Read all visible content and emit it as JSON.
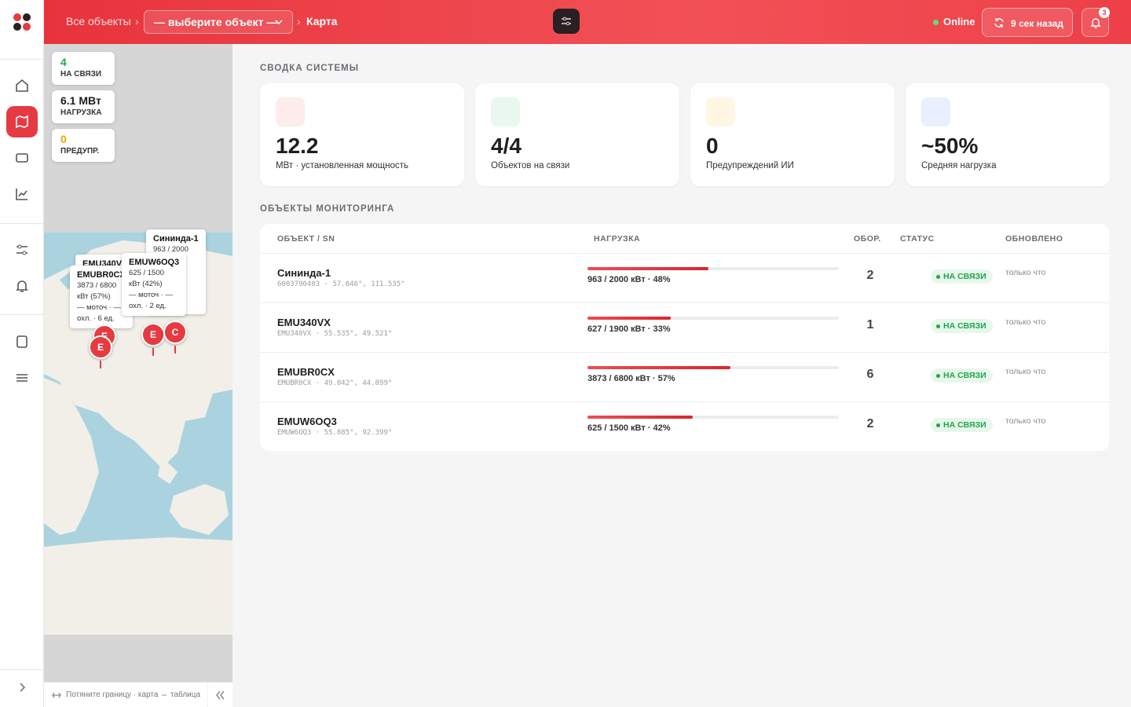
{
  "header": {
    "breadcrumb_root": "Все объекты",
    "object_select": "— выберите объект —",
    "current": "Карта",
    "status": "Online",
    "refresh": "9 сек назад",
    "notifications": 3
  },
  "map": {
    "stats": [
      {
        "value": "4",
        "label": "НА СВЯЗИ"
      },
      {
        "value": "6.1 МВт",
        "label": "НАГРУЗКА"
      },
      {
        "value": "0",
        "label": "ПРЕДУПР."
      }
    ],
    "popups": [
      {
        "title": "Сининда-1",
        "lines": [
          "963 / 2000"
        ]
      },
      {
        "title": "EMU340V",
        "lines": []
      },
      {
        "title": "EMUBR0CX",
        "lines": [
          "3873 / 6800",
          "кВт (57%)",
          "— моточ · —",
          "охл. · 6 ед."
        ]
      },
      {
        "title": "EMUW6OQ3",
        "lines": [
          "625 / 1500",
          "кВт (42%)",
          "— моточ · —",
          "охл. · 2 ед."
        ]
      }
    ],
    "markers": [
      "E",
      "E",
      "E",
      "C"
    ],
    "footer_hint": "Потяните границу · карта ⇔ таблица"
  },
  "summary": {
    "title": "СВОДКА СИСТЕМЫ",
    "cards": [
      {
        "value": "12.2",
        "label": "МВт · установленная мощность"
      },
      {
        "value": "4/4",
        "label": "Объектов на связи"
      },
      {
        "value": "0",
        "label": "Предупреждений ИИ"
      },
      {
        "value": "~50%",
        "label": "Средняя нагрузка"
      }
    ]
  },
  "monitoring": {
    "title": "ОБЪЕКТЫ МОНИТОРИНГА",
    "columns": [
      "ОБЪЕКТ / SN",
      "НАГРУЗКА",
      "ОБОР.",
      "СТАТУС",
      "ОБНОВЛЕНО"
    ],
    "rows": [
      {
        "name": "Сининда-1",
        "sub": "6003790403 · 57.046°, 111.535°",
        "load_label": "963 / 2000 кВт · 48%",
        "load_pct": 48,
        "equipment": 2,
        "status": "НА СВЯЗИ",
        "updated": "только что"
      },
      {
        "name": "EMU340VX",
        "sub": "EMU340VX · 55.535°, 49.521°",
        "load_label": "627 / 1900 кВт · 33%",
        "load_pct": 33,
        "equipment": 1,
        "status": "НА СВЯЗИ",
        "updated": "только что"
      },
      {
        "name": "EMUBR0CX",
        "sub": "EMUBR0CX · 49.042°, 44.099°",
        "load_label": "3873 / 6800 кВт · 57%",
        "load_pct": 57,
        "equipment": 6,
        "status": "НА СВЯЗИ",
        "updated": "только что"
      },
      {
        "name": "EMUW6OQ3",
        "sub": "EMUW6OQ3 · 55.885°, 92.399°",
        "load_label": "625 / 1500 кВт · 42%",
        "load_pct": 42,
        "equipment": 2,
        "status": "НА СВЯЗИ",
        "updated": "только что"
      }
    ]
  }
}
